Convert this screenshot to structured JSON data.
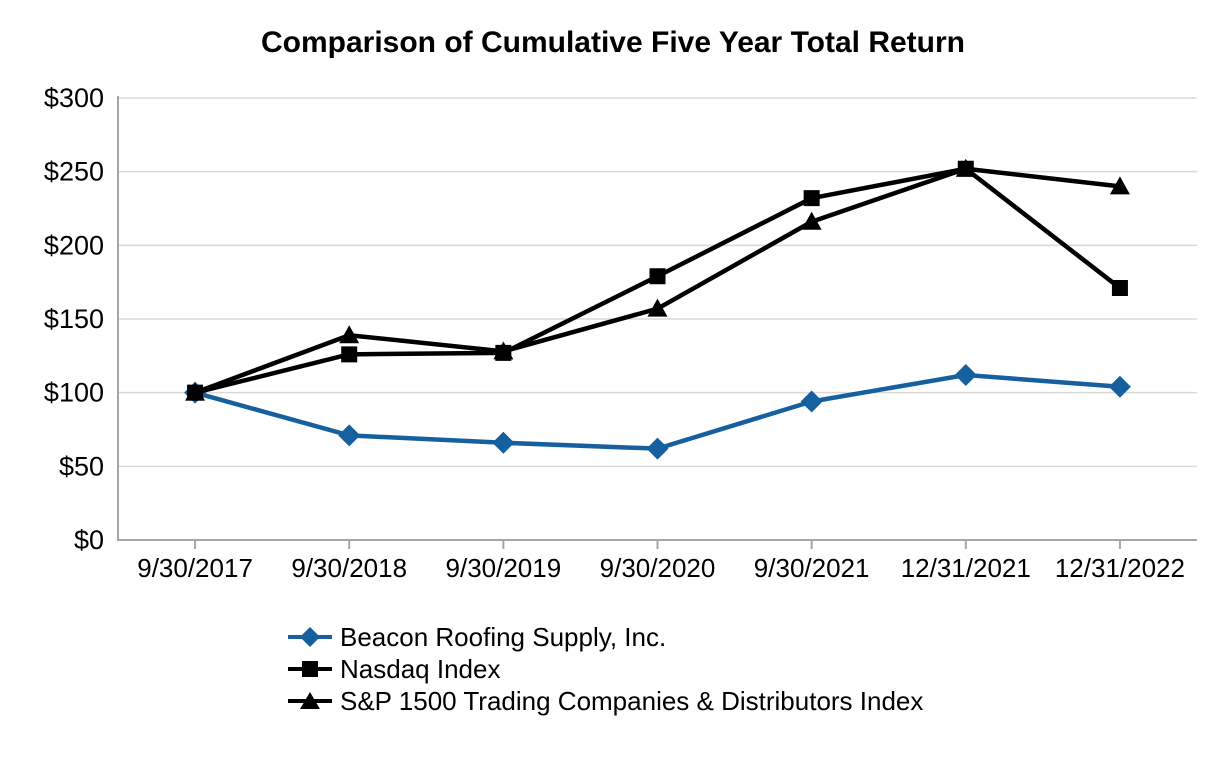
{
  "chart_data": {
    "type": "line",
    "title": "Comparison of Cumulative Five Year Total Return",
    "categories": [
      "9/30/2017",
      "9/30/2018",
      "9/30/2019",
      "9/30/2020",
      "9/30/2021",
      "12/31/2021",
      "12/31/2022"
    ],
    "series": [
      {
        "name": "Beacon Roofing Supply, Inc.",
        "marker": "diamond",
        "color": "#17609F",
        "values": [
          100,
          71,
          66,
          62,
          94,
          112,
          104
        ]
      },
      {
        "name": "Nasdaq Index",
        "marker": "square",
        "color": "#000000",
        "values": [
          100,
          126,
          127,
          179,
          232,
          252,
          171
        ]
      },
      {
        "name": "S&P 1500 Trading Companies & Distributors Index",
        "marker": "triangle",
        "color": "#000000",
        "values": [
          100,
          139,
          128,
          157,
          216,
          252,
          240
        ]
      }
    ],
    "y_axis": {
      "min": 0,
      "max": 300,
      "step": 50,
      "prefix": "$",
      "tick_labels": [
        "$0",
        "$50",
        "$100",
        "$150",
        "$200",
        "$250",
        "$300"
      ]
    },
    "x_axis": {
      "tick_marks": true
    },
    "grid": true,
    "legend_position": "bottom-left"
  },
  "colors": {
    "gridline": "#D9D9D9",
    "axis": "#A6A6A6",
    "text": "#000000",
    "background": "#FFFFFF"
  }
}
